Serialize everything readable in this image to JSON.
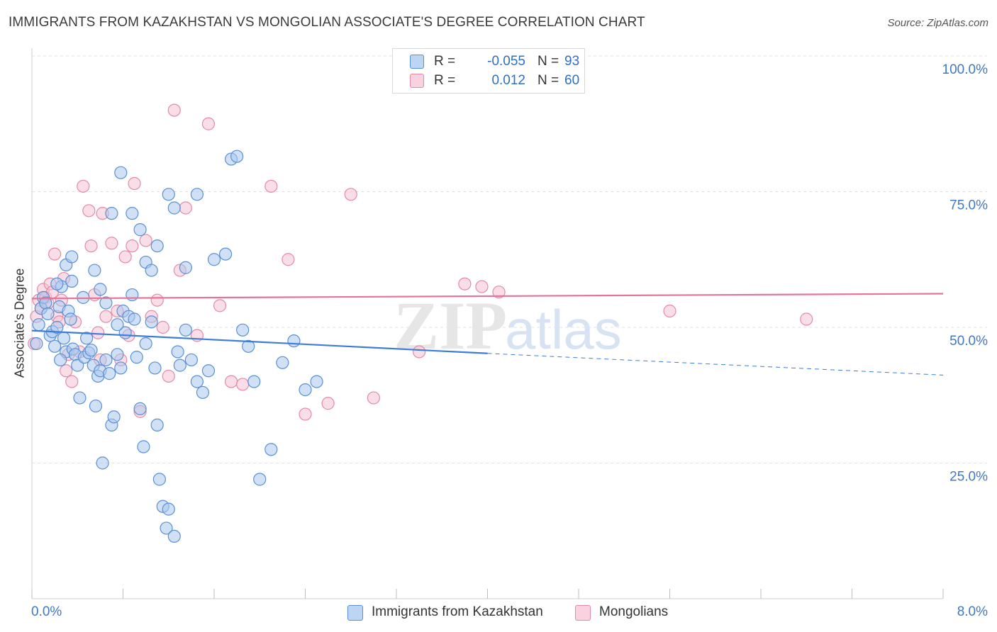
{
  "title": "IMMIGRANTS FROM KAZAKHSTAN VS MONGOLIAN ASSOCIATE'S DEGREE CORRELATION CHART",
  "source": "Source: ZipAtlas.com",
  "watermark": {
    "zip": "ZIP",
    "atlas": "atlas"
  },
  "colors": {
    "blue_fill": "#a9c8ef",
    "blue_stroke": "#5b8fd6",
    "blue_line": "#3b7dd8",
    "pink_fill": "#f6c3d3",
    "pink_stroke": "#e38aa7",
    "pink_line": "#e3749a",
    "axis_text": "#3f78c9",
    "grid": "#e2e2e2"
  },
  "legend": {
    "r_label": "R =",
    "n_label": "N =",
    "series1": {
      "r": "-0.055",
      "n": "93"
    },
    "series2": {
      "r": "0.012",
      "n": "60"
    }
  },
  "bottom_legend": {
    "series1": "Immigrants from Kazakhstan",
    "series2": "Mongolians"
  },
  "chart_data": {
    "type": "scatter",
    "title": "IMMIGRANTS FROM KAZAKHSTAN VS MONGOLIAN ASSOCIATE'S DEGREE CORRELATION CHART",
    "xlabel": "",
    "ylabel": "Associate's Degree",
    "xlim": [
      0,
      8
    ],
    "ylim": [
      0,
      100
    ],
    "x_tick_labels": [
      "0.0%",
      "8.0%"
    ],
    "y_ticks": [
      25,
      50,
      75,
      100
    ],
    "y_tick_labels": [
      "25.0%",
      "50.0%",
      "75.0%",
      "100.0%"
    ],
    "grid": true,
    "legend_position": "top-center",
    "series": [
      {
        "name": "Immigrants from Kazakhstan",
        "r": -0.055,
        "n": 93,
        "trend": {
          "x": [
            0.0,
            4.0
          ],
          "y": [
            49.4,
            45.2
          ],
          "dashed_to": [
            8.0,
            41.2
          ]
        },
        "points": [
          [
            0.04,
            47.0
          ],
          [
            0.06,
            50.5
          ],
          [
            0.08,
            53.5
          ],
          [
            0.1,
            55.5
          ],
          [
            0.12,
            54.5
          ],
          [
            0.14,
            52.5
          ],
          [
            0.16,
            48.5
          ],
          [
            0.18,
            49.2
          ],
          [
            0.2,
            46.5
          ],
          [
            0.22,
            50.0
          ],
          [
            0.24,
            53.8
          ],
          [
            0.26,
            57.5
          ],
          [
            0.28,
            48.0
          ],
          [
            0.3,
            45.5
          ],
          [
            0.32,
            53.0
          ],
          [
            0.34,
            51.5
          ],
          [
            0.36,
            46.0
          ],
          [
            0.38,
            45.0
          ],
          [
            0.4,
            43.0
          ],
          [
            0.42,
            37.0
          ],
          [
            0.46,
            44.5
          ],
          [
            0.48,
            48.0
          ],
          [
            0.5,
            45.3
          ],
          [
            0.52,
            45.8
          ],
          [
            0.54,
            43.0
          ],
          [
            0.56,
            35.5
          ],
          [
            0.58,
            41.0
          ],
          [
            0.6,
            42.0
          ],
          [
            0.62,
            25.0
          ],
          [
            0.65,
            44.0
          ],
          [
            0.68,
            41.5
          ],
          [
            0.7,
            32.0
          ],
          [
            0.72,
            33.5
          ],
          [
            0.75,
            45.0
          ],
          [
            0.78,
            42.5
          ],
          [
            0.8,
            53.0
          ],
          [
            0.82,
            49.0
          ],
          [
            0.85,
            52.0
          ],
          [
            0.88,
            56.0
          ],
          [
            0.9,
            51.5
          ],
          [
            0.92,
            44.5
          ],
          [
            0.95,
            35.0
          ],
          [
            0.98,
            28.0
          ],
          [
            1.0,
            47.0
          ],
          [
            1.05,
            51.0
          ],
          [
            1.08,
            42.5
          ],
          [
            1.1,
            32.0
          ],
          [
            1.12,
            22.0
          ],
          [
            1.15,
            17.0
          ],
          [
            1.18,
            13.0
          ],
          [
            1.2,
            16.5
          ],
          [
            1.25,
            11.5
          ],
          [
            1.28,
            45.5
          ],
          [
            1.3,
            43.0
          ],
          [
            1.35,
            49.5
          ],
          [
            1.4,
            44.0
          ],
          [
            1.45,
            40.0
          ],
          [
            1.5,
            38.0
          ],
          [
            1.55,
            42.0
          ],
          [
            1.6,
            62.5
          ],
          [
            1.7,
            63.5
          ],
          [
            1.75,
            81.0
          ],
          [
            1.8,
            81.5
          ],
          [
            1.85,
            49.5
          ],
          [
            1.9,
            46.5
          ],
          [
            1.95,
            40.0
          ],
          [
            2.0,
            22.0
          ],
          [
            2.1,
            27.5
          ],
          [
            2.2,
            43.5
          ],
          [
            2.3,
            47.5
          ],
          [
            2.4,
            38.5
          ],
          [
            2.5,
            40.0
          ],
          [
            0.22,
            58.0
          ],
          [
            0.3,
            61.5
          ],
          [
            0.35,
            58.5
          ],
          [
            0.45,
            55.5
          ],
          [
            0.55,
            60.5
          ],
          [
            0.6,
            57.0
          ],
          [
            0.7,
            71.0
          ],
          [
            0.78,
            78.5
          ],
          [
            0.88,
            71.0
          ],
          [
            0.95,
            68.0
          ],
          [
            1.0,
            62.0
          ],
          [
            1.05,
            60.5
          ],
          [
            1.1,
            65.0
          ],
          [
            1.2,
            74.5
          ],
          [
            1.25,
            72.0
          ],
          [
            1.35,
            61.0
          ],
          [
            1.45,
            74.5
          ],
          [
            0.25,
            44.0
          ],
          [
            0.35,
            63.0
          ],
          [
            0.65,
            54.5
          ],
          [
            0.75,
            50.5
          ]
        ]
      },
      {
        "name": "Mongolians",
        "r": 0.012,
        "n": 60,
        "trend": {
          "x": [
            0.0,
            8.0
          ],
          "y": [
            55.3,
            56.2
          ]
        },
        "points": [
          [
            0.02,
            47.0
          ],
          [
            0.04,
            52.0
          ],
          [
            0.06,
            55.0
          ],
          [
            0.08,
            53.5
          ],
          [
            0.1,
            57.0
          ],
          [
            0.12,
            55.5
          ],
          [
            0.14,
            54.5
          ],
          [
            0.16,
            58.0
          ],
          [
            0.18,
            56.5
          ],
          [
            0.2,
            63.5
          ],
          [
            0.22,
            52.0
          ],
          [
            0.24,
            51.0
          ],
          [
            0.26,
            55.0
          ],
          [
            0.28,
            59.0
          ],
          [
            0.3,
            42.0
          ],
          [
            0.32,
            45.0
          ],
          [
            0.35,
            40.0
          ],
          [
            0.38,
            51.0
          ],
          [
            0.42,
            45.5
          ],
          [
            0.45,
            76.0
          ],
          [
            0.5,
            71.5
          ],
          [
            0.52,
            65.0
          ],
          [
            0.55,
            56.0
          ],
          [
            0.58,
            49.0
          ],
          [
            0.6,
            44.0
          ],
          [
            0.62,
            71.0
          ],
          [
            0.65,
            52.0
          ],
          [
            0.7,
            65.5
          ],
          [
            0.75,
            53.0
          ],
          [
            0.78,
            44.0
          ],
          [
            0.82,
            63.0
          ],
          [
            0.85,
            48.5
          ],
          [
            0.88,
            65.0
          ],
          [
            0.9,
            76.5
          ],
          [
            0.95,
            34.5
          ],
          [
            1.0,
            66.0
          ],
          [
            1.05,
            52.0
          ],
          [
            1.1,
            55.0
          ],
          [
            1.15,
            50.0
          ],
          [
            1.2,
            41.0
          ],
          [
            1.25,
            90.0
          ],
          [
            1.3,
            60.5
          ],
          [
            1.35,
            72.0
          ],
          [
            1.45,
            48.5
          ],
          [
            1.55,
            87.5
          ],
          [
            1.65,
            54.0
          ],
          [
            1.75,
            40.0
          ],
          [
            1.85,
            39.5
          ],
          [
            2.1,
            76.0
          ],
          [
            2.25,
            62.5
          ],
          [
            2.4,
            34.0
          ],
          [
            2.6,
            36.0
          ],
          [
            2.8,
            74.5
          ],
          [
            3.0,
            37.0
          ],
          [
            3.4,
            45.5
          ],
          [
            3.8,
            58.0
          ],
          [
            3.95,
            57.5
          ],
          [
            4.1,
            56.5
          ],
          [
            5.6,
            53.0
          ],
          [
            6.8,
            51.5
          ]
        ]
      }
    ]
  }
}
